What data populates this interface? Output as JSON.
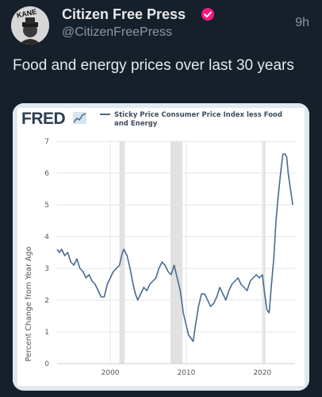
{
  "tweet": {
    "author_name": "Citizen Free Press",
    "handle": "@CitizenFreePress",
    "time": "9h",
    "text": "Food and energy prices over last 30 years",
    "avatar_text": "KANE",
    "verified_color": "#f91880"
  },
  "chart_data": {
    "type": "line",
    "logo": "FRED",
    "series": [
      {
        "name": "Sticky Price Consumer Price Index less Food and Energy",
        "color": "#4a6a8f",
        "x": [
          1993.0,
          1993.3,
          1993.6,
          1994.0,
          1994.4,
          1994.8,
          1995.2,
          1995.6,
          1996.0,
          1996.4,
          1996.8,
          1997.2,
          1997.6,
          1998.0,
          1998.4,
          1998.8,
          1999.2,
          1999.6,
          2000.0,
          2000.4,
          2000.8,
          2001.2,
          2001.6,
          2001.8,
          2002.2,
          2002.6,
          2003.0,
          2003.3,
          2003.6,
          2004.0,
          2004.4,
          2004.8,
          2005.2,
          2005.6,
          2006.0,
          2006.4,
          2006.8,
          2007.2,
          2007.6,
          2008.0,
          2008.4,
          2008.8,
          2009.2,
          2009.6,
          2010.0,
          2010.3,
          2010.6,
          2010.9,
          2011.2,
          2011.6,
          2012.0,
          2012.4,
          2012.8,
          2013.2,
          2013.6,
          2014.0,
          2014.4,
          2014.8,
          2015.2,
          2015.6,
          2016.0,
          2016.4,
          2016.8,
          2017.2,
          2017.6,
          2018.0,
          2018.4,
          2018.8,
          2019.2,
          2019.6,
          2020.0,
          2020.3,
          2020.6,
          2020.9,
          2021.2,
          2021.5,
          2021.8,
          2022.1,
          2022.4,
          2022.7,
          2023.0,
          2023.2,
          2023.4,
          2023.7,
          2024.0
        ],
        "y": [
          3.6,
          3.5,
          3.6,
          3.4,
          3.5,
          3.2,
          3.1,
          3.3,
          3.0,
          2.9,
          2.7,
          2.8,
          2.6,
          2.5,
          2.3,
          2.1,
          2.1,
          2.5,
          2.7,
          2.9,
          3.0,
          3.1,
          3.5,
          3.6,
          3.4,
          3.0,
          2.5,
          2.2,
          2.0,
          2.2,
          2.4,
          2.3,
          2.5,
          2.6,
          2.7,
          3.0,
          3.2,
          3.1,
          2.9,
          2.8,
          3.1,
          2.7,
          2.3,
          1.6,
          1.2,
          0.9,
          0.8,
          0.7,
          1.2,
          1.8,
          2.2,
          2.2,
          2.0,
          1.8,
          1.9,
          2.1,
          2.4,
          2.2,
          2.0,
          2.3,
          2.5,
          2.6,
          2.7,
          2.5,
          2.4,
          2.3,
          2.6,
          2.7,
          2.8,
          2.7,
          2.8,
          2.2,
          1.7,
          1.6,
          2.5,
          3.3,
          4.5,
          5.3,
          6.0,
          6.6,
          6.6,
          6.5,
          6.0,
          5.5,
          5.0
        ]
      }
    ],
    "ylabel": "Percent Change from Year Ago",
    "xlabel": "",
    "xlim": [
      1993.0,
      2024.3
    ],
    "ylim": [
      0,
      7
    ],
    "y_ticks": [
      "0",
      "1",
      "2",
      "3",
      "4",
      "5",
      "6",
      "7"
    ],
    "x_ticks": [
      "2000",
      "2010",
      "2020"
    ],
    "recessions": [
      [
        2001.2,
        2001.9
      ],
      [
        2007.9,
        2009.5
      ],
      [
        2020.1,
        2020.4
      ]
    ],
    "grid": true,
    "legend_position": "top-right",
    "background": "#ffffff",
    "recession_color": "#e1e1e1"
  }
}
